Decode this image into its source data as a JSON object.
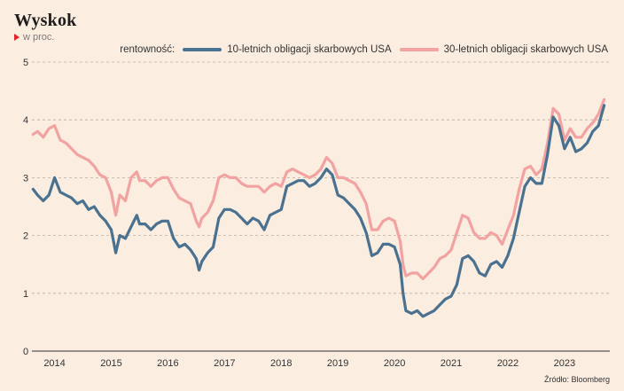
{
  "header": {
    "title": "Wyskok",
    "subtitle": "w proc."
  },
  "legend": {
    "label": "rentowność:",
    "items": [
      {
        "label": "10-letnich obligacji skarbowych USA",
        "color": "#4a7290"
      },
      {
        "label": "30-letnich obligacji skarbowych USA",
        "color": "#f2a3a1"
      }
    ]
  },
  "source": "Źródło: Bloomberg",
  "chart_data": {
    "type": "line",
    "title": "Wyskok",
    "subtitle": "w proc.",
    "ylim": [
      0,
      5
    ],
    "yticks": [
      0,
      1,
      2,
      3,
      4,
      5
    ],
    "xlim": [
      2013.6,
      2023.8
    ],
    "xticks": [
      2014,
      2015,
      2016,
      2017,
      2018,
      2019,
      2020,
      2021,
      2022,
      2023
    ],
    "grid": "horizontal dashed",
    "legend_position": "top-right",
    "series": [
      {
        "name": "10-letnich obligacji skarbowych USA",
        "color": "#4a7290",
        "x": [
          2013.62,
          2013.7,
          2013.8,
          2013.9,
          2014.0,
          2014.1,
          2014.2,
          2014.3,
          2014.4,
          2014.5,
          2014.6,
          2014.7,
          2014.8,
          2014.9,
          2015.0,
          2015.08,
          2015.15,
          2015.25,
          2015.35,
          2015.45,
          2015.5,
          2015.6,
          2015.7,
          2015.8,
          2015.9,
          2016.0,
          2016.1,
          2016.2,
          2016.3,
          2016.4,
          2016.5,
          2016.55,
          2016.6,
          2016.7,
          2016.8,
          2016.9,
          2017.0,
          2017.1,
          2017.2,
          2017.3,
          2017.4,
          2017.5,
          2017.6,
          2017.7,
          2017.8,
          2017.9,
          2018.0,
          2018.1,
          2018.2,
          2018.3,
          2018.4,
          2018.5,
          2018.6,
          2018.7,
          2018.8,
          2018.9,
          2019.0,
          2019.1,
          2019.2,
          2019.3,
          2019.4,
          2019.5,
          2019.6,
          2019.7,
          2019.8,
          2019.9,
          2020.0,
          2020.1,
          2020.15,
          2020.2,
          2020.3,
          2020.4,
          2020.5,
          2020.6,
          2020.7,
          2020.8,
          2020.9,
          2021.0,
          2021.1,
          2021.2,
          2021.3,
          2021.4,
          2021.5,
          2021.6,
          2021.7,
          2021.8,
          2021.9,
          2022.0,
          2022.1,
          2022.2,
          2022.3,
          2022.4,
          2022.5,
          2022.6,
          2022.7,
          2022.8,
          2022.9,
          2023.0,
          2023.1,
          2023.2,
          2023.3,
          2023.4,
          2023.5,
          2023.6,
          2023.7
        ],
        "values": [
          2.8,
          2.7,
          2.6,
          2.7,
          3.0,
          2.75,
          2.7,
          2.65,
          2.55,
          2.6,
          2.45,
          2.5,
          2.35,
          2.25,
          2.1,
          1.7,
          2.0,
          1.95,
          2.15,
          2.35,
          2.2,
          2.2,
          2.1,
          2.2,
          2.25,
          2.25,
          1.95,
          1.8,
          1.85,
          1.75,
          1.6,
          1.4,
          1.55,
          1.7,
          1.8,
          2.3,
          2.45,
          2.45,
          2.4,
          2.3,
          2.2,
          2.3,
          2.25,
          2.1,
          2.35,
          2.4,
          2.45,
          2.85,
          2.9,
          2.95,
          2.95,
          2.85,
          2.9,
          3.0,
          3.15,
          3.05,
          2.7,
          2.65,
          2.55,
          2.45,
          2.3,
          2.05,
          1.65,
          1.7,
          1.85,
          1.85,
          1.8,
          1.5,
          1.0,
          0.7,
          0.65,
          0.7,
          0.6,
          0.65,
          0.7,
          0.8,
          0.9,
          0.95,
          1.15,
          1.6,
          1.65,
          1.55,
          1.35,
          1.3,
          1.5,
          1.55,
          1.45,
          1.65,
          1.95,
          2.4,
          2.85,
          3.0,
          2.9,
          2.9,
          3.4,
          4.05,
          3.9,
          3.5,
          3.7,
          3.45,
          3.5,
          3.6,
          3.8,
          3.9,
          4.25
        ]
      },
      {
        "name": "30-letnich obligacji skarbowych USA",
        "color": "#f2a3a1",
        "x": [
          2013.62,
          2013.7,
          2013.8,
          2013.9,
          2014.0,
          2014.1,
          2014.2,
          2014.3,
          2014.4,
          2014.5,
          2014.6,
          2014.7,
          2014.8,
          2014.9,
          2015.0,
          2015.08,
          2015.15,
          2015.25,
          2015.35,
          2015.45,
          2015.5,
          2015.6,
          2015.7,
          2015.8,
          2015.9,
          2016.0,
          2016.1,
          2016.2,
          2016.3,
          2016.4,
          2016.5,
          2016.55,
          2016.6,
          2016.7,
          2016.8,
          2016.9,
          2017.0,
          2017.1,
          2017.2,
          2017.3,
          2017.4,
          2017.5,
          2017.6,
          2017.7,
          2017.8,
          2017.9,
          2018.0,
          2018.1,
          2018.2,
          2018.3,
          2018.4,
          2018.5,
          2018.6,
          2018.7,
          2018.8,
          2018.9,
          2019.0,
          2019.1,
          2019.2,
          2019.3,
          2019.4,
          2019.5,
          2019.6,
          2019.7,
          2019.8,
          2019.9,
          2020.0,
          2020.1,
          2020.15,
          2020.2,
          2020.3,
          2020.4,
          2020.5,
          2020.6,
          2020.7,
          2020.8,
          2020.9,
          2021.0,
          2021.1,
          2021.2,
          2021.3,
          2021.4,
          2021.5,
          2021.6,
          2021.7,
          2021.8,
          2021.9,
          2022.0,
          2022.1,
          2022.2,
          2022.3,
          2022.4,
          2022.5,
          2022.6,
          2022.7,
          2022.8,
          2022.9,
          2023.0,
          2023.1,
          2023.2,
          2023.3,
          2023.4,
          2023.5,
          2023.6,
          2023.7
        ],
        "values": [
          3.75,
          3.8,
          3.7,
          3.85,
          3.9,
          3.65,
          3.6,
          3.5,
          3.4,
          3.35,
          3.3,
          3.2,
          3.05,
          3.0,
          2.75,
          2.35,
          2.7,
          2.6,
          3.0,
          3.1,
          2.95,
          2.95,
          2.85,
          2.95,
          3.0,
          3.0,
          2.8,
          2.65,
          2.6,
          2.55,
          2.25,
          2.15,
          2.3,
          2.4,
          2.6,
          3.0,
          3.05,
          3.0,
          3.0,
          2.9,
          2.85,
          2.85,
          2.85,
          2.75,
          2.85,
          2.9,
          2.85,
          3.1,
          3.15,
          3.1,
          3.05,
          3.0,
          3.05,
          3.15,
          3.35,
          3.25,
          3.0,
          3.0,
          2.95,
          2.9,
          2.75,
          2.55,
          2.1,
          2.1,
          2.25,
          2.3,
          2.25,
          1.9,
          1.5,
          1.3,
          1.35,
          1.35,
          1.25,
          1.35,
          1.45,
          1.6,
          1.65,
          1.75,
          2.05,
          2.35,
          2.3,
          2.05,
          1.95,
          1.95,
          2.05,
          2.0,
          1.85,
          2.1,
          2.35,
          2.8,
          3.15,
          3.2,
          3.05,
          3.15,
          3.6,
          4.2,
          4.1,
          3.65,
          3.85,
          3.7,
          3.7,
          3.85,
          3.95,
          4.1,
          4.35
        ]
      }
    ]
  }
}
